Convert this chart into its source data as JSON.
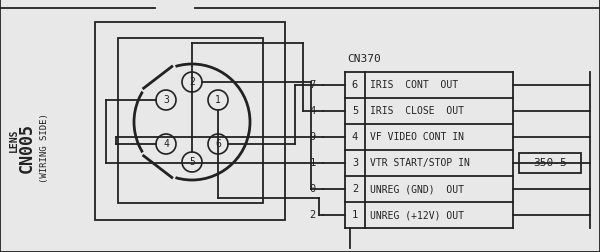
{
  "bg_color": "#e8e8e8",
  "white": "#f0f0f0",
  "line_color": "#222222",
  "title_left": "CN005",
  "subtitle_left": "LENS",
  "wiring_label": "(WIRING SIDE)",
  "connector_title": "CN370",
  "connector_pins": [
    {
      "pin": 6,
      "wire": "7",
      "label": "IRIS  CONT  OUT"
    },
    {
      "pin": 5,
      "wire": "4",
      "label": "IRIS  CLOSE  OUT"
    },
    {
      "pin": 4,
      "wire": "9",
      "label": "VF VIDEO CONT IN"
    },
    {
      "pin": 3,
      "wire": "1",
      "label": "VTR START/STOP IN",
      "note": "350-5"
    },
    {
      "pin": 2,
      "wire": "0",
      "label": "UNREG (GND)  OUT"
    },
    {
      "pin": 1,
      "wire": "2",
      "label": "UNREG (+12V) OUT"
    }
  ]
}
